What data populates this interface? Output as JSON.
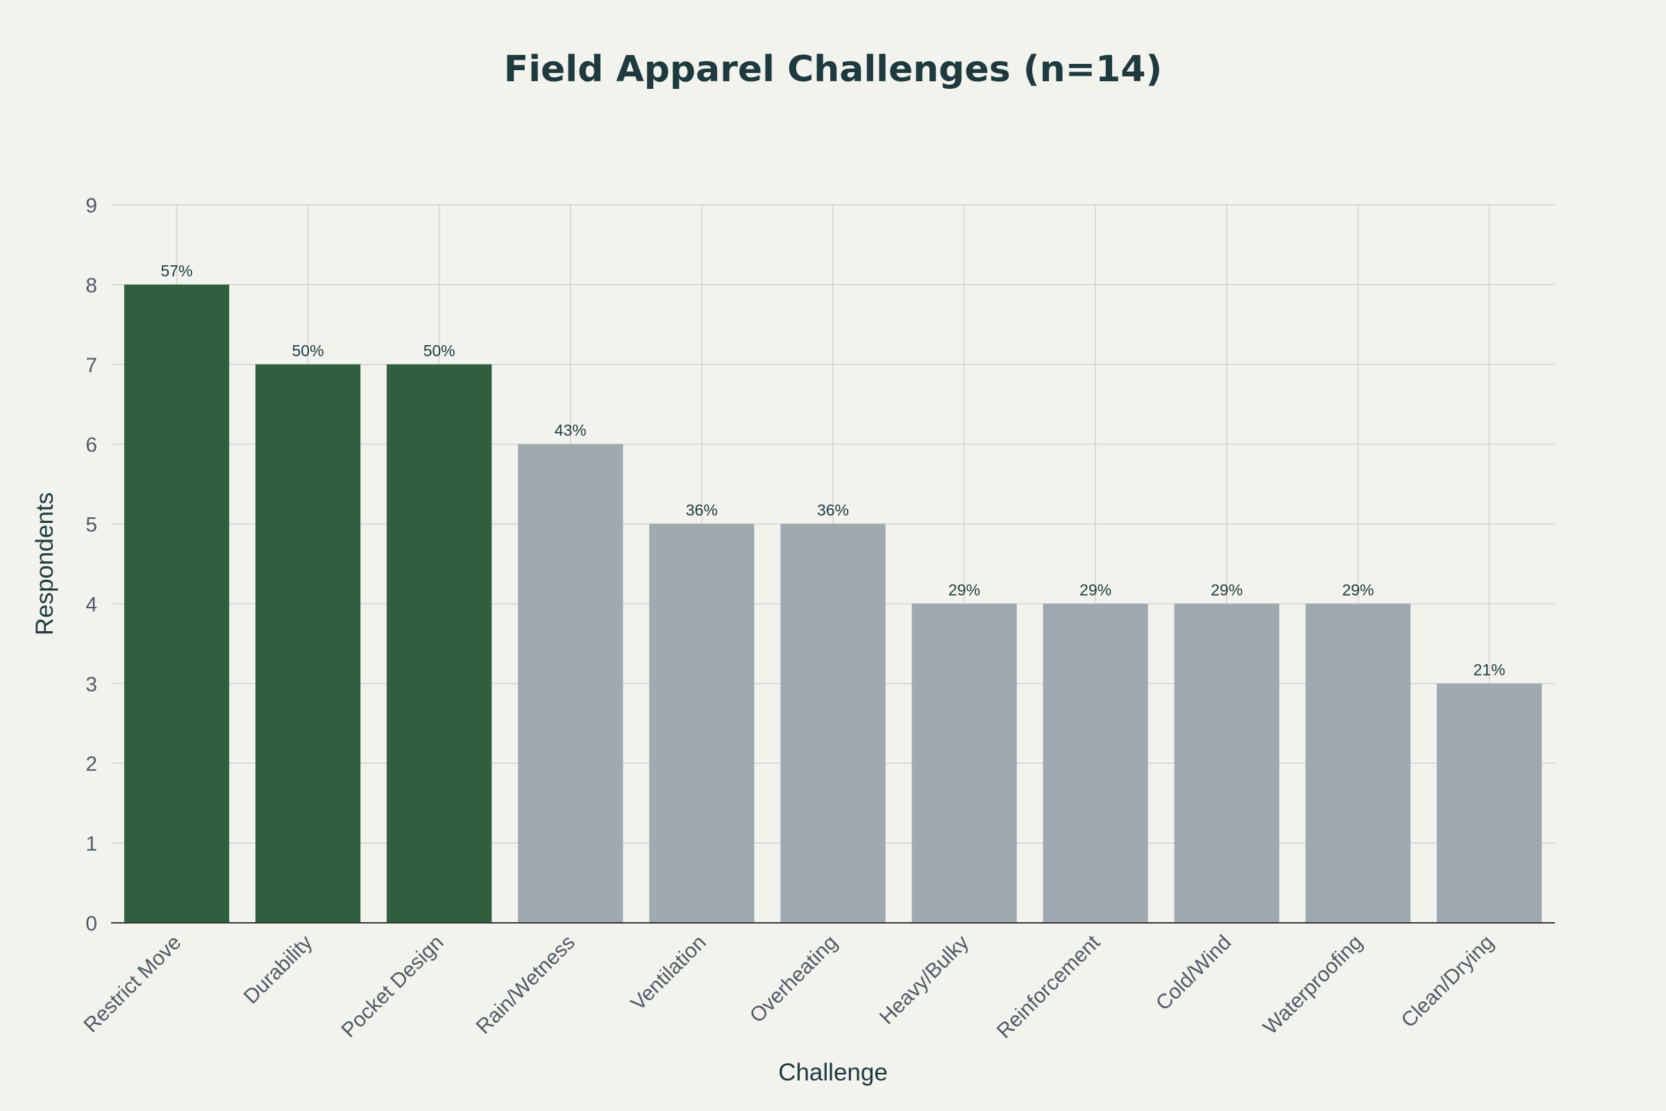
{
  "colors": {
    "background": "#f3f3ee",
    "highlight": "#2f5f3f",
    "default": "#a0a8b0",
    "text": "#1e3a3f"
  },
  "chart_data": {
    "type": "bar",
    "title": "Field Apparel Challenges (n=14)",
    "xlabel": "Challenge",
    "ylabel": "Respondents",
    "ylim": [
      0,
      9
    ],
    "yticks": [
      0,
      1,
      2,
      3,
      4,
      5,
      6,
      7,
      8,
      9
    ],
    "grid": true,
    "categories": [
      "Restrict Move",
      "Durability",
      "Pocket Design",
      "Rain/Wetness",
      "Ventilation",
      "Overheating",
      "Heavy/Bulky",
      "Reinforcement",
      "Cold/Wind",
      "Waterproofing",
      "Clean/Drying"
    ],
    "values": [
      8,
      7,
      7,
      6,
      5,
      5,
      4,
      4,
      4,
      4,
      3
    ],
    "labels": [
      "57%",
      "50%",
      "50%",
      "43%",
      "36%",
      "36%",
      "29%",
      "29%",
      "29%",
      "29%",
      "21%"
    ],
    "highlighted": [
      true,
      true,
      true,
      false,
      false,
      false,
      false,
      false,
      false,
      false,
      false
    ]
  }
}
